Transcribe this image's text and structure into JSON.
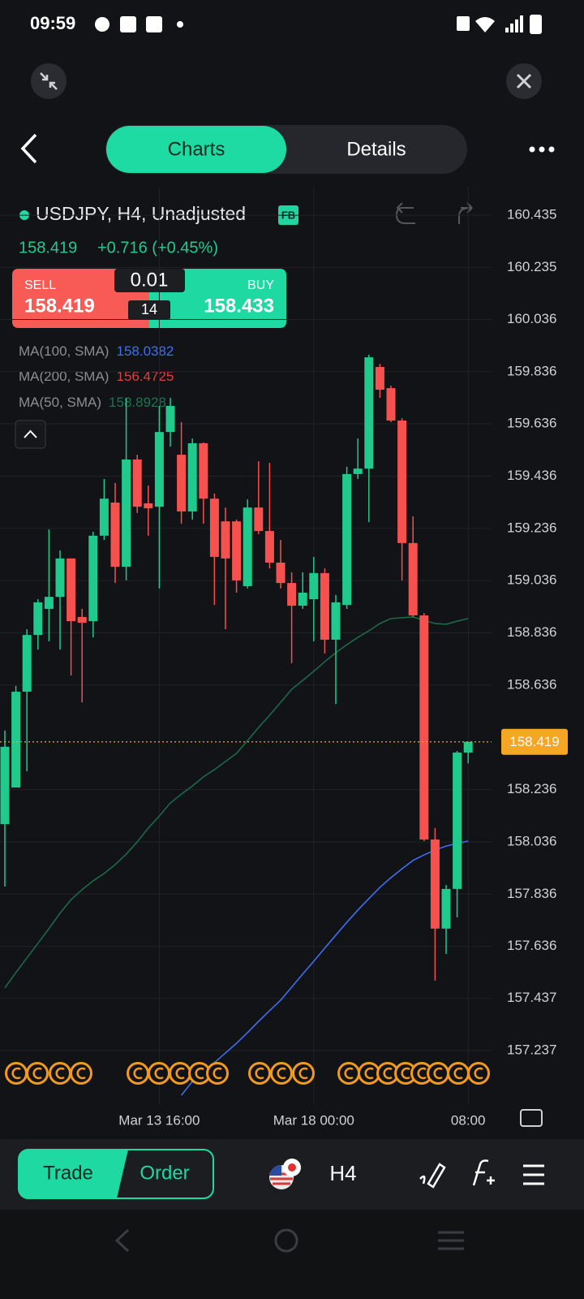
{
  "status_bar": {
    "time": "09:59"
  },
  "tabs": [
    "Charts",
    "Details"
  ],
  "symbol": {
    "title": "USDJPY, H4, Unadjusted",
    "badge": "FB",
    "price": "158.419",
    "change": "+0.716 (+0.45%)"
  },
  "trade_box": {
    "sell_label": "SELL",
    "sell_price": "158.419",
    "lot": "0.01",
    "spread": "14",
    "buy_label": "BUY",
    "buy_price": "158.433"
  },
  "indicators": [
    {
      "name": "MA(100, SMA)",
      "value": 158.0382,
      "color": "#3f6ff2"
    },
    {
      "name": "MA(200, SMA)",
      "value": 156.4725,
      "color": "#e0403f"
    },
    {
      "name": "MA(50, SMA)",
      "value": 158.8928,
      "color": "#1d7350"
    }
  ],
  "chart_data": {
    "type": "candlestick",
    "categories": [
      null,
      null,
      null,
      null,
      null,
      null,
      null,
      null,
      null,
      null,
      null,
      null,
      null,
      null,
      "Mar 13 16:00",
      null,
      null,
      null,
      null,
      null,
      null,
      null,
      null,
      null,
      null,
      null,
      null,
      null,
      "Mar 18 00:00",
      null,
      null,
      null,
      null,
      null,
      null,
      null,
      null,
      null,
      null,
      null,
      null,
      null,
      "08:00"
    ],
    "open": [
      158.104,
      158.244,
      158.611,
      158.828,
      158.928,
      158.974,
      159.121,
      158.897,
      158.881,
      159.208,
      159.335,
      159.089,
      159.5,
      159.332,
      159.319,
      159.605,
      159.518,
      159.301,
      159.562,
      159.35,
      159.263,
      159.263,
      159.015,
      159.316,
      159.226,
      159.105,
      159.027,
      158.94,
      158.965,
      159.065,
      158.81,
      158.943,
      159.444,
      159.465,
      159.854,
      159.773,
      159.649,
      159.18,
      158.903,
      158.045,
      157.704,
      157.856,
      158.378
    ],
    "high": [
      158.462,
      158.633,
      158.85,
      158.965,
      159.232,
      159.152,
      159.121,
      158.928,
      159.223,
      159.425,
      159.41,
      159.736,
      159.518,
      159.4,
      159.705,
      159.736,
      159.643,
      159.58,
      159.565,
      159.369,
      159.316,
      159.27,
      159.347,
      159.493,
      159.487,
      159.192,
      159.068,
      159.068,
      159.127,
      159.083,
      158.981,
      159.472,
      159.58,
      159.901,
      159.866,
      159.782,
      159.658,
      159.282,
      158.912,
      158.089,
      157.871,
      158.384,
      158.419
    ],
    "low": [
      157.865,
      158.244,
      158.306,
      158.772,
      158.804,
      158.772,
      158.673,
      158.57,
      158.819,
      159.192,
      159.027,
      159.037,
      159.295,
      159.208,
      159.006,
      159.549,
      159.254,
      159.27,
      159.254,
      158.943,
      158.85,
      158.99,
      159.006,
      159.214,
      159.083,
      159.006,
      158.72,
      158.928,
      158.804,
      158.757,
      158.564,
      158.928,
      159.425,
      159.26,
      159.736,
      159.643,
      159.037,
      158.897,
      158.039,
      157.505,
      157.607,
      157.747,
      158.337
    ],
    "close": [
      158.4,
      158.611,
      158.828,
      158.953,
      158.974,
      159.121,
      158.881,
      158.875,
      159.208,
      159.35,
      159.089,
      159.5,
      159.319,
      159.313,
      159.605,
      159.705,
      159.301,
      159.562,
      159.35,
      159.127,
      159.121,
      159.037,
      159.316,
      159.226,
      159.105,
      159.027,
      158.94,
      158.99,
      159.065,
      158.81,
      158.953,
      159.444,
      159.465,
      159.891,
      159.767,
      159.649,
      159.18,
      158.903,
      158.045,
      157.704,
      157.856,
      158.378,
      158.419
    ],
    "up_color": "#20c98c",
    "down_color": "#f5524f",
    "series": [
      {
        "name": "MA(100, SMA)",
        "color": "#3f6ff2",
        "values": [
          null,
          null,
          null,
          null,
          null,
          null,
          null,
          null,
          null,
          null,
          null,
          null,
          null,
          null,
          null,
          null,
          157.066,
          157.119,
          157.153,
          157.191,
          157.228,
          157.265,
          157.306,
          157.349,
          157.39,
          157.43,
          157.48,
          157.53,
          157.579,
          157.629,
          157.679,
          157.728,
          157.775,
          157.819,
          157.862,
          157.899,
          157.933,
          157.965,
          157.986,
          158.005,
          158.02,
          158.03,
          158.039
        ]
      },
      {
        "name": "MA(50, SMA)",
        "color": "#1a6a48",
        "values": [
          157.477,
          157.536,
          157.592,
          157.648,
          157.704,
          157.763,
          157.815,
          157.853,
          157.887,
          157.915,
          157.949,
          157.989,
          158.036,
          158.089,
          158.135,
          158.185,
          158.219,
          158.25,
          158.285,
          158.313,
          158.344,
          158.375,
          158.424,
          158.474,
          158.521,
          158.57,
          158.62,
          158.654,
          158.689,
          158.726,
          158.76,
          158.791,
          158.819,
          158.844,
          158.872,
          158.891,
          158.894,
          158.897,
          158.884,
          158.872,
          158.869,
          158.881,
          158.891
        ]
      }
    ],
    "ylim": [
      157.032,
      160.544
    ],
    "yticks": [
      157.237,
      157.437,
      157.636,
      157.836,
      158.036,
      158.236,
      158.636,
      158.836,
      159.036,
      159.236,
      159.436,
      159.636,
      159.836,
      160.036,
      160.235,
      160.435
    ],
    "grid": true,
    "current_price": 158.419,
    "current_price_color": "#f5a623"
  },
  "bottom_bar": {
    "trade": "Trade",
    "order": "Order",
    "timeframe": "H4"
  }
}
